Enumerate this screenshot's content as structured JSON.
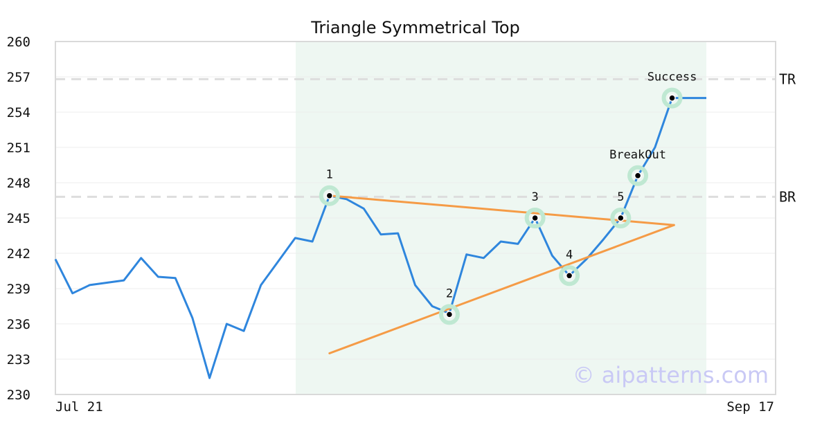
{
  "chart_data": {
    "type": "line",
    "title": "Triangle Symmetrical Top",
    "ylim": [
      230,
      260
    ],
    "y_ticks": [
      260,
      257,
      254,
      251,
      248,
      245,
      242,
      239,
      236,
      233,
      230
    ],
    "x_range": [
      0,
      38
    ],
    "x_tick_labels": [
      {
        "x": 0,
        "label": "Jul 21"
      },
      {
        "x": 38,
        "label": "Sep 17"
      }
    ],
    "grid": true,
    "series": [
      {
        "color": "#2f86dd",
        "x": [
          0,
          1,
          2,
          3,
          4,
          5,
          6,
          7,
          8,
          9,
          10,
          11,
          12,
          13,
          14,
          15,
          16,
          17,
          18,
          19,
          20,
          21,
          22,
          23,
          24,
          25,
          26,
          27,
          28,
          29,
          30,
          31,
          32,
          33,
          34,
          35,
          36,
          37,
          38
        ],
        "y": [
          241.5,
          238.6,
          239.3,
          239.5,
          239.7,
          241.6,
          240.0,
          239.9,
          236.5,
          231.4,
          236.0,
          235.4,
          239.3,
          241.3,
          243.3,
          243.0,
          246.9,
          246.6,
          245.8,
          243.6,
          243.7,
          239.3,
          237.5,
          236.9,
          241.9,
          241.6,
          243.0,
          242.8,
          245.0,
          241.8,
          240.1,
          241.5,
          243.2,
          245.0,
          248.6,
          251.0,
          255.2,
          255.2,
          255.2
        ]
      }
    ],
    "trendlines": [
      {
        "color": "#f59b46",
        "x1": 16,
        "y1": 246.9,
        "x2": 37,
        "y2": 244.4
      },
      {
        "color": "#f59b46",
        "x1": 16,
        "y1": 233.5,
        "x2": 37,
        "y2": 244.4
      }
    ],
    "reference_lines": [
      {
        "label": "TR",
        "y": 256.8,
        "color": "#dddddd"
      },
      {
        "label": "BR",
        "y": 246.8,
        "color": "#dddddd"
      }
    ],
    "highlight_region": {
      "x_start": 14,
      "x_end": 38,
      "color": "#eef7f2"
    },
    "markers": [
      {
        "label": "1",
        "x": 16,
        "y": 246.9
      },
      {
        "label": "2",
        "x": 23,
        "y": 236.8
      },
      {
        "label": "3",
        "x": 28,
        "y": 245.0
      },
      {
        "label": "4",
        "x": 30,
        "y": 240.1
      },
      {
        "label": "5",
        "x": 33,
        "y": 245.0
      },
      {
        "label": "BreakOut",
        "x": 34,
        "y": 248.6
      },
      {
        "label": "Success",
        "x": 36,
        "y": 255.2
      }
    ],
    "watermark": "© aipatterns.com"
  }
}
